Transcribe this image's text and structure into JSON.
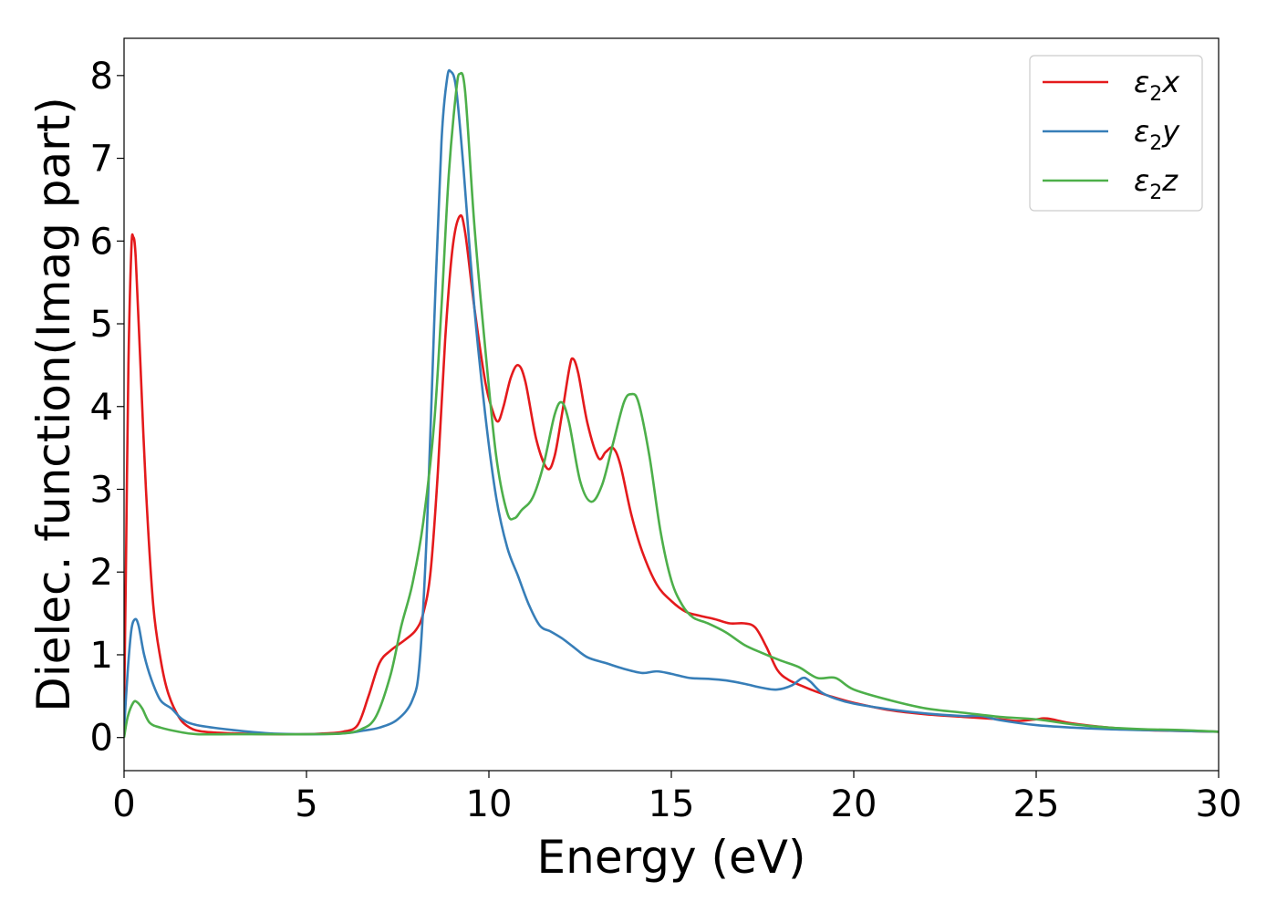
{
  "chart_data": {
    "type": "line",
    "xlabel": "Energy (eV)",
    "ylabel": "Dielec. function(Imag part)",
    "xlim": [
      0,
      30
    ],
    "ylim": [
      -0.4,
      8.45
    ],
    "x_ticks": [
      0,
      5,
      10,
      15,
      20,
      25,
      30
    ],
    "y_ticks": [
      0,
      1,
      2,
      3,
      4,
      5,
      6,
      7,
      8
    ],
    "grid": false,
    "legend_position": "top-right",
    "series": [
      {
        "name": "ε2x",
        "legend": {
          "symbol": "ε",
          "sub": "2",
          "var": "x"
        },
        "color": "#e41a1c",
        "points": [
          [
            0,
            0.3
          ],
          [
            0.05,
            2.0
          ],
          [
            0.12,
            4.5
          ],
          [
            0.2,
            5.9
          ],
          [
            0.25,
            6.05
          ],
          [
            0.32,
            5.8
          ],
          [
            0.45,
            4.5
          ],
          [
            0.6,
            3.0
          ],
          [
            0.8,
            1.6
          ],
          [
            1.0,
            0.95
          ],
          [
            1.2,
            0.55
          ],
          [
            1.5,
            0.25
          ],
          [
            1.8,
            0.12
          ],
          [
            2.2,
            0.07
          ],
          [
            3,
            0.05
          ],
          [
            4,
            0.04
          ],
          [
            5,
            0.04
          ],
          [
            5.5,
            0.05
          ],
          [
            6,
            0.07
          ],
          [
            6.4,
            0.15
          ],
          [
            6.7,
            0.5
          ],
          [
            7.0,
            0.9
          ],
          [
            7.3,
            1.05
          ],
          [
            7.7,
            1.18
          ],
          [
            8.0,
            1.3
          ],
          [
            8.2,
            1.5
          ],
          [
            8.4,
            2.0
          ],
          [
            8.6,
            3.2
          ],
          [
            8.8,
            4.8
          ],
          [
            9.0,
            5.9
          ],
          [
            9.2,
            6.3
          ],
          [
            9.35,
            6.1
          ],
          [
            9.6,
            5.2
          ],
          [
            9.9,
            4.3
          ],
          [
            10.1,
            3.95
          ],
          [
            10.25,
            3.82
          ],
          [
            10.4,
            4.0
          ],
          [
            10.6,
            4.35
          ],
          [
            10.8,
            4.5
          ],
          [
            11.0,
            4.3
          ],
          [
            11.3,
            3.6
          ],
          [
            11.6,
            3.25
          ],
          [
            11.8,
            3.4
          ],
          [
            12.0,
            3.9
          ],
          [
            12.2,
            4.45
          ],
          [
            12.3,
            4.58
          ],
          [
            12.45,
            4.4
          ],
          [
            12.7,
            3.8
          ],
          [
            13.0,
            3.38
          ],
          [
            13.2,
            3.45
          ],
          [
            13.4,
            3.5
          ],
          [
            13.6,
            3.3
          ],
          [
            13.9,
            2.7
          ],
          [
            14.2,
            2.25
          ],
          [
            14.6,
            1.85
          ],
          [
            15.0,
            1.65
          ],
          [
            15.4,
            1.52
          ],
          [
            15.8,
            1.47
          ],
          [
            16.2,
            1.43
          ],
          [
            16.6,
            1.38
          ],
          [
            17.0,
            1.38
          ],
          [
            17.3,
            1.33
          ],
          [
            17.6,
            1.1
          ],
          [
            17.9,
            0.82
          ],
          [
            18.2,
            0.7
          ],
          [
            18.6,
            0.62
          ],
          [
            19.0,
            0.55
          ],
          [
            19.5,
            0.48
          ],
          [
            20,
            0.42
          ],
          [
            21,
            0.33
          ],
          [
            22,
            0.28
          ],
          [
            23,
            0.25
          ],
          [
            24,
            0.22
          ],
          [
            24.5,
            0.2
          ],
          [
            25,
            0.22
          ],
          [
            25.3,
            0.23
          ],
          [
            26,
            0.17
          ],
          [
            27,
            0.12
          ],
          [
            28,
            0.09
          ],
          [
            29,
            0.08
          ],
          [
            30,
            0.07
          ]
        ]
      },
      {
        "name": "ε2y",
        "legend": {
          "symbol": "ε",
          "sub": "2",
          "var": "y"
        },
        "color": "#377eb8",
        "points": [
          [
            0,
            0.1
          ],
          [
            0.1,
            0.8
          ],
          [
            0.2,
            1.3
          ],
          [
            0.3,
            1.43
          ],
          [
            0.4,
            1.35
          ],
          [
            0.55,
            1.0
          ],
          [
            0.75,
            0.7
          ],
          [
            1.0,
            0.45
          ],
          [
            1.3,
            0.35
          ],
          [
            1.6,
            0.22
          ],
          [
            2,
            0.15
          ],
          [
            3,
            0.09
          ],
          [
            4,
            0.05
          ],
          [
            5,
            0.04
          ],
          [
            6,
            0.05
          ],
          [
            6.5,
            0.08
          ],
          [
            7.0,
            0.12
          ],
          [
            7.5,
            0.22
          ],
          [
            7.9,
            0.45
          ],
          [
            8.1,
            0.9
          ],
          [
            8.3,
            2.5
          ],
          [
            8.5,
            5.0
          ],
          [
            8.7,
            7.2
          ],
          [
            8.85,
            7.95
          ],
          [
            8.95,
            8.05
          ],
          [
            9.1,
            7.85
          ],
          [
            9.3,
            6.9
          ],
          [
            9.6,
            5.2
          ],
          [
            9.9,
            3.9
          ],
          [
            10.2,
            2.9
          ],
          [
            10.5,
            2.3
          ],
          [
            10.8,
            1.95
          ],
          [
            11.1,
            1.6
          ],
          [
            11.4,
            1.35
          ],
          [
            11.7,
            1.28
          ],
          [
            12.0,
            1.2
          ],
          [
            12.3,
            1.1
          ],
          [
            12.7,
            0.97
          ],
          [
            13.2,
            0.9
          ],
          [
            13.7,
            0.83
          ],
          [
            14.2,
            0.78
          ],
          [
            14.6,
            0.8
          ],
          [
            15.0,
            0.77
          ],
          [
            15.5,
            0.72
          ],
          [
            16,
            0.71
          ],
          [
            16.5,
            0.69
          ],
          [
            17,
            0.65
          ],
          [
            17.5,
            0.6
          ],
          [
            17.9,
            0.58
          ],
          [
            18.3,
            0.63
          ],
          [
            18.6,
            0.72
          ],
          [
            18.8,
            0.68
          ],
          [
            19.1,
            0.55
          ],
          [
            19.5,
            0.47
          ],
          [
            20,
            0.41
          ],
          [
            21,
            0.34
          ],
          [
            22,
            0.29
          ],
          [
            23,
            0.26
          ],
          [
            23.5,
            0.26
          ],
          [
            24,
            0.21
          ],
          [
            25,
            0.15
          ],
          [
            26,
            0.12
          ],
          [
            27,
            0.1
          ],
          [
            28,
            0.09
          ],
          [
            29,
            0.08
          ],
          [
            30,
            0.07
          ]
        ]
      },
      {
        "name": "ε2z",
        "legend": {
          "symbol": "ε",
          "sub": "2",
          "var": "z"
        },
        "color": "#4daf4a",
        "points": [
          [
            0,
            0.0
          ],
          [
            0.1,
            0.25
          ],
          [
            0.25,
            0.42
          ],
          [
            0.35,
            0.43
          ],
          [
            0.5,
            0.35
          ],
          [
            0.7,
            0.18
          ],
          [
            1.0,
            0.12
          ],
          [
            1.5,
            0.07
          ],
          [
            2,
            0.04
          ],
          [
            3,
            0.04
          ],
          [
            4,
            0.04
          ],
          [
            5,
            0.04
          ],
          [
            6,
            0.05
          ],
          [
            6.5,
            0.1
          ],
          [
            6.9,
            0.25
          ],
          [
            7.3,
            0.75
          ],
          [
            7.6,
            1.35
          ],
          [
            7.9,
            1.85
          ],
          [
            8.2,
            2.6
          ],
          [
            8.5,
            3.8
          ],
          [
            8.7,
            5.2
          ],
          [
            8.9,
            6.8
          ],
          [
            9.1,
            7.8
          ],
          [
            9.2,
            8.02
          ],
          [
            9.35,
            7.8
          ],
          [
            9.6,
            6.2
          ],
          [
            9.9,
            4.7
          ],
          [
            10.2,
            3.4
          ],
          [
            10.5,
            2.72
          ],
          [
            10.7,
            2.65
          ],
          [
            10.9,
            2.75
          ],
          [
            11.2,
            2.9
          ],
          [
            11.5,
            3.3
          ],
          [
            11.8,
            3.9
          ],
          [
            12.0,
            4.05
          ],
          [
            12.2,
            3.8
          ],
          [
            12.5,
            3.1
          ],
          [
            12.8,
            2.85
          ],
          [
            13.1,
            3.05
          ],
          [
            13.4,
            3.55
          ],
          [
            13.7,
            4.05
          ],
          [
            13.9,
            4.15
          ],
          [
            14.1,
            4.05
          ],
          [
            14.4,
            3.4
          ],
          [
            14.7,
            2.5
          ],
          [
            15.0,
            1.9
          ],
          [
            15.3,
            1.6
          ],
          [
            15.6,
            1.45
          ],
          [
            16.0,
            1.38
          ],
          [
            16.5,
            1.27
          ],
          [
            17.0,
            1.12
          ],
          [
            17.5,
            1.02
          ],
          [
            18.0,
            0.93
          ],
          [
            18.5,
            0.85
          ],
          [
            19.0,
            0.72
          ],
          [
            19.5,
            0.72
          ],
          [
            20,
            0.58
          ],
          [
            21,
            0.45
          ],
          [
            22,
            0.35
          ],
          [
            23,
            0.3
          ],
          [
            24,
            0.25
          ],
          [
            25,
            0.22
          ],
          [
            26,
            0.16
          ],
          [
            27,
            0.12
          ],
          [
            28,
            0.1
          ],
          [
            29,
            0.09
          ],
          [
            30,
            0.07
          ]
        ]
      }
    ]
  }
}
